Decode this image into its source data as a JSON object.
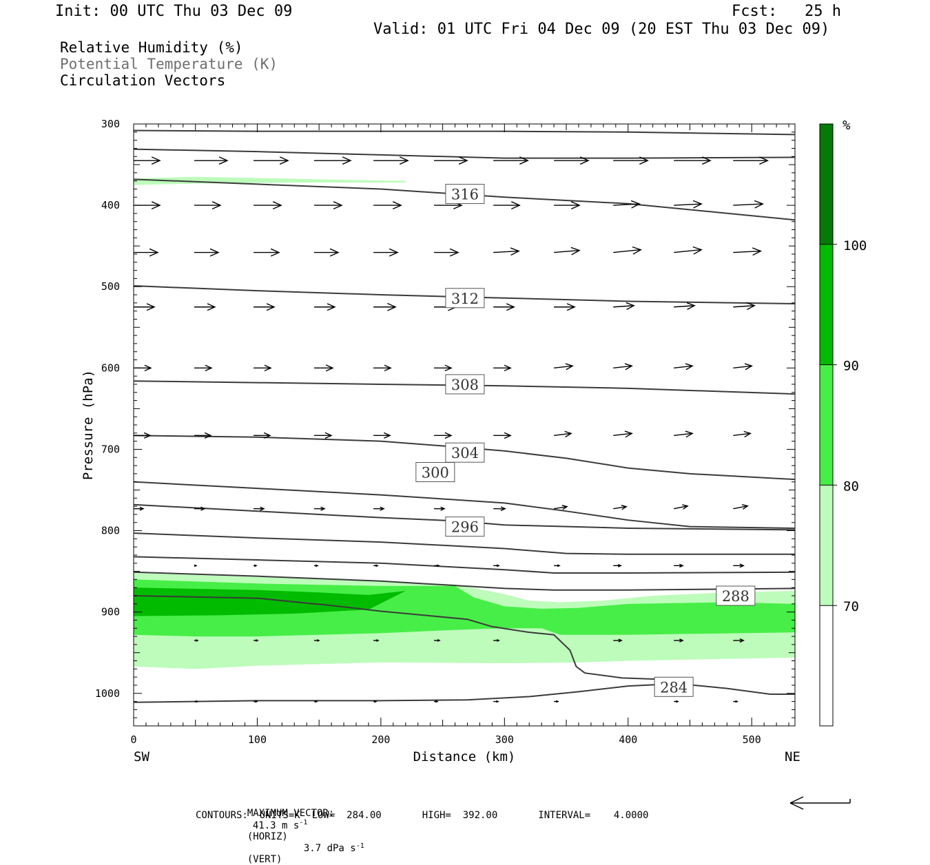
{
  "header": {
    "init": "Init: 00 UTC Thu 03 Dec 09",
    "fcst": "Fcst:   25 h",
    "valid": "Valid: 01 UTC Fri 04 Dec 09 (20 EST Thu 03 Dec 09)"
  },
  "legend": {
    "line1": "Relative Humidity (%)",
    "line2": "Potential Temperature (K)",
    "line3": "Circulation Vectors"
  },
  "footer": {
    "max_vector_label": "MAXIMUM VECTOR:",
    "max_horiz": "41.3 m s",
    "horiz_tag": "(HORIZ)",
    "max_vert": "3.7 dPa s",
    "vert_tag": "(VERT)",
    "exponent": "-1",
    "contours": "CONTOURS:  UNITS=K  LOW=  284.00       HIGH=  392.00       INTERVAL=    4.0000"
  },
  "colors": {
    "rh_70_80": "#bdfcbb",
    "rh_80_90": "#47ee47",
    "rh_90_100": "#00bb00",
    "rh_100": "#067a06",
    "contour": "#3a3a3a",
    "legend_gray": "#6e6e6e"
  },
  "chart_data": {
    "type": "cross-section",
    "xlabel": "Distance (km)",
    "ylabel": "Pressure (hPa)",
    "x_left_label": "SW",
    "x_right_label": "NE",
    "xlim": [
      0,
      535
    ],
    "ylim": [
      1040,
      300
    ],
    "xticks": [
      0,
      100,
      200,
      300,
      400,
      500
    ],
    "yticks": [
      300,
      400,
      500,
      600,
      700,
      800,
      900,
      1000
    ],
    "colorbar": {
      "unit": "%",
      "levels": [
        70,
        80,
        90,
        100
      ],
      "min": 60,
      "max": 110
    },
    "rh_shading": [
      {
        "level": 70,
        "upper": [
          [
            0,
            852
          ],
          [
            100,
            857
          ],
          [
            200,
            862
          ],
          [
            260,
            866
          ],
          [
            300,
            878
          ],
          [
            320,
            886
          ],
          [
            345,
            888
          ],
          [
            380,
            886
          ],
          [
            420,
            880
          ],
          [
            480,
            876
          ],
          [
            535,
            874
          ]
        ],
        "lower": [
          [
            0,
            967
          ],
          [
            50,
            970
          ],
          [
            100,
            966
          ],
          [
            200,
            962
          ],
          [
            300,
            963
          ],
          [
            360,
            962
          ],
          [
            400,
            960
          ],
          [
            535,
            956
          ]
        ]
      },
      {
        "level": 80,
        "upper": [
          [
            0,
            860
          ],
          [
            100,
            865
          ],
          [
            200,
            868
          ],
          [
            260,
            868
          ],
          [
            275,
            882
          ],
          [
            300,
            893
          ],
          [
            330,
            896
          ],
          [
            360,
            895
          ],
          [
            400,
            890
          ],
          [
            480,
            888
          ],
          [
            535,
            890
          ]
        ],
        "lower": [
          [
            0,
            928
          ],
          [
            50,
            930
          ],
          [
            100,
            930
          ],
          [
            200,
            926
          ],
          [
            260,
            922
          ],
          [
            300,
            920
          ],
          [
            330,
            920
          ],
          [
            345,
            928
          ],
          [
            400,
            928
          ],
          [
            535,
            925
          ]
        ]
      },
      {
        "level": 90,
        "upper": [
          [
            0,
            870
          ],
          [
            100,
            873
          ],
          [
            150,
            876
          ],
          [
            190,
            879
          ],
          [
            220,
            874
          ]
        ],
        "lower": [
          [
            0,
            905
          ],
          [
            70,
            904
          ],
          [
            130,
            902
          ],
          [
            190,
            897
          ],
          [
            220,
            874
          ]
        ]
      },
      {
        "level": 70,
        "upper": [
          [
            0,
            367
          ],
          [
            50,
            365
          ],
          [
            120,
            367
          ],
          [
            180,
            369
          ],
          [
            220,
            370
          ]
        ],
        "lower": [
          [
            0,
            375
          ],
          [
            60,
            373
          ],
          [
            140,
            372
          ],
          [
            220,
            372
          ]
        ]
      }
    ],
    "theta_contours": [
      {
        "value": 284,
        "label_at": [
          437,
          992
        ],
        "points": [
          [
            0,
            1011
          ],
          [
            100,
            1009
          ],
          [
            200,
            1009
          ],
          [
            270,
            1008
          ],
          [
            320,
            1004
          ],
          [
            360,
            998
          ],
          [
            400,
            991
          ],
          [
            440,
            988
          ],
          [
            480,
            994
          ],
          [
            515,
            1001
          ],
          [
            535,
            1001
          ]
        ]
      },
      {
        "value": 286,
        "points": [
          [
            0,
            880
          ],
          [
            100,
            883
          ],
          [
            160,
            892
          ],
          [
            200,
            899
          ],
          [
            270,
            909
          ],
          [
            290,
            918
          ],
          [
            320,
            925
          ],
          [
            340,
            928
          ],
          [
            353,
            947
          ],
          [
            358,
            967
          ],
          [
            365,
            975
          ],
          [
            395,
            981
          ],
          [
            430,
            983
          ],
          [
            445,
            984
          ]
        ]
      },
      {
        "value": 288,
        "label_at": [
          487,
          880
        ],
        "points": [
          [
            0,
            851
          ],
          [
            100,
            856
          ],
          [
            200,
            862
          ],
          [
            300,
            871
          ],
          [
            340,
            873
          ],
          [
            400,
            873
          ],
          [
            535,
            871
          ]
        ]
      },
      {
        "value": 290,
        "points": [
          [
            0,
            832
          ],
          [
            100,
            836
          ],
          [
            200,
            840
          ],
          [
            300,
            848
          ],
          [
            340,
            852
          ],
          [
            400,
            852
          ],
          [
            535,
            851
          ]
        ]
      },
      {
        "value": 292,
        "points": [
          [
            0,
            803
          ],
          [
            100,
            809
          ],
          [
            200,
            814
          ],
          [
            300,
            822
          ],
          [
            350,
            828
          ],
          [
            400,
            829
          ],
          [
            535,
            829
          ]
        ]
      },
      {
        "value": 296,
        "label_at": [
          268,
          795
        ],
        "points": [
          [
            0,
            768
          ],
          [
            100,
            776
          ],
          [
            200,
            784
          ],
          [
            260,
            788
          ],
          [
            300,
            793
          ],
          [
            400,
            797
          ],
          [
            535,
            799
          ]
        ]
      },
      {
        "value": 300,
        "label_at": [
          244,
          728
        ],
        "points": [
          [
            0,
            740
          ],
          [
            100,
            748
          ],
          [
            200,
            756
          ],
          [
            260,
            762
          ],
          [
            300,
            766
          ],
          [
            350,
            776
          ],
          [
            400,
            787
          ],
          [
            450,
            795
          ],
          [
            535,
            797
          ]
        ]
      },
      {
        "value": 304,
        "label_at": [
          268,
          704
        ],
        "points": [
          [
            0,
            683
          ],
          [
            100,
            685
          ],
          [
            200,
            690
          ],
          [
            260,
            697
          ],
          [
            300,
            702
          ],
          [
            350,
            711
          ],
          [
            400,
            723
          ],
          [
            450,
            730
          ],
          [
            535,
            737
          ]
        ]
      },
      {
        "value": 308,
        "label_at": [
          268,
          620
        ],
        "points": [
          [
            0,
            616
          ],
          [
            100,
            618
          ],
          [
            200,
            620
          ],
          [
            300,
            622
          ],
          [
            400,
            625
          ],
          [
            535,
            632
          ]
        ]
      },
      {
        "value": 312,
        "label_at": [
          268,
          514
        ],
        "points": [
          [
            0,
            499
          ],
          [
            100,
            505
          ],
          [
            200,
            510
          ],
          [
            300,
            514
          ],
          [
            400,
            518
          ],
          [
            535,
            521
          ]
        ]
      },
      {
        "value": 316,
        "label_at": [
          268,
          386
        ],
        "points": [
          [
            0,
            368
          ],
          [
            100,
            374
          ],
          [
            200,
            380
          ],
          [
            300,
            390
          ],
          [
            400,
            398
          ],
          [
            535,
            418
          ]
        ]
      },
      {
        "value": 320,
        "points": [
          [
            0,
            331
          ],
          [
            100,
            334
          ],
          [
            200,
            338
          ],
          [
            300,
            342
          ],
          [
            400,
            342
          ],
          [
            535,
            341
          ]
        ]
      },
      {
        "value": 324,
        "points": [
          [
            0,
            308
          ],
          [
            100,
            309
          ],
          [
            200,
            309
          ],
          [
            300,
            309
          ],
          [
            400,
            310
          ],
          [
            535,
            313
          ]
        ]
      }
    ],
    "vectors": [
      {
        "p": 345,
        "x0": [
          0,
          49,
          97,
          146,
          194,
          243,
          291,
          340,
          388,
          437,
          485
        ],
        "dx": [
          38,
          48,
          50,
          53,
          50,
          48,
          50,
          50,
          50,
          53,
          50
        ],
        "dp": [
          0,
          0,
          0,
          0,
          0,
          0,
          0,
          0,
          0,
          0,
          0
        ]
      },
      {
        "p": 400,
        "x0": [
          0,
          49,
          97,
          146,
          194,
          243,
          291,
          340,
          388,
          437,
          485
        ],
        "dx": [
          38,
          38,
          40,
          40,
          40,
          40,
          38,
          37,
          38,
          40,
          43
        ],
        "dp": [
          0,
          0,
          0,
          0,
          0,
          0,
          0,
          0,
          -2,
          -2,
          -2
        ]
      },
      {
        "p": 458,
        "x0": [
          0,
          49,
          97,
          146,
          194,
          243,
          291,
          340,
          388,
          437,
          485
        ],
        "dx": [
          35,
          35,
          37,
          35,
          35,
          35,
          37,
          37,
          40,
          40,
          40
        ],
        "dp": [
          0,
          0,
          0,
          0,
          0,
          0,
          -2,
          -3,
          -4,
          -4,
          -2
        ]
      },
      {
        "p": 525,
        "x0": [
          0,
          49,
          97,
          146,
          194,
          243,
          291,
          340,
          388,
          437,
          485
        ],
        "dx": [
          30,
          30,
          30,
          30,
          32,
          32,
          30,
          30,
          30,
          30,
          31
        ],
        "dp": [
          0,
          0,
          0,
          0,
          0,
          0,
          0,
          0,
          -2,
          -2,
          -2
        ]
      },
      {
        "p": 600,
        "x0": [
          0,
          49,
          97,
          146,
          194,
          243,
          291,
          340,
          388,
          437,
          485
        ],
        "dx": [
          25,
          25,
          25,
          27,
          25,
          25,
          25,
          27,
          27,
          27,
          27
        ],
        "dp": [
          0,
          0,
          0,
          0,
          0,
          0,
          0,
          -3,
          -3,
          -3,
          -3
        ]
      },
      {
        "p": 683,
        "x0": [
          0,
          49,
          97,
          146,
          194,
          243,
          291,
          340,
          388,
          437,
          485
        ],
        "dx": [
          24,
          24,
          24,
          25,
          24,
          25,
          25,
          25,
          27,
          27,
          25
        ],
        "dp": [
          0,
          0,
          0,
          0,
          0,
          0,
          0,
          -3,
          -3,
          -3,
          -3
        ]
      },
      {
        "p": 773,
        "x0": [
          0,
          49,
          97,
          146,
          194,
          243,
          291,
          340,
          388,
          437,
          485
        ],
        "dx": [
          14,
          15,
          15,
          15,
          15,
          15,
          17,
          19,
          19,
          20,
          21
        ],
        "dp": [
          0,
          0,
          0,
          0,
          0,
          0,
          0,
          -3,
          -3,
          -4,
          -4
        ]
      },
      {
        "p": 843,
        "x0": [
          49,
          97,
          146,
          194,
          243,
          291,
          340,
          388,
          437,
          485
        ],
        "dx": [
          3,
          4,
          5,
          6,
          7,
          8,
          8,
          11,
          13,
          15
        ],
        "dp": [
          0,
          0,
          0,
          0,
          0,
          0,
          0,
          0,
          0,
          0
        ]
      },
      {
        "p": 935,
        "x0": [
          49,
          97,
          146,
          194,
          243,
          291,
          388,
          437,
          485
        ],
        "dx": [
          5,
          6,
          7,
          7,
          8,
          8,
          12,
          13,
          15
        ],
        "dp": [
          0,
          0,
          0,
          0,
          0,
          0,
          0,
          0,
          0
        ]
      },
      {
        "p": 1010,
        "x0": [
          49,
          97,
          146,
          194,
          243,
          291,
          340,
          437,
          485
        ],
        "dx": [
          5,
          5,
          4,
          4,
          5,
          7,
          6,
          6,
          6
        ],
        "dp": [
          0,
          0,
          0,
          0,
          0,
          0,
          0,
          0,
          0
        ]
      }
    ]
  }
}
